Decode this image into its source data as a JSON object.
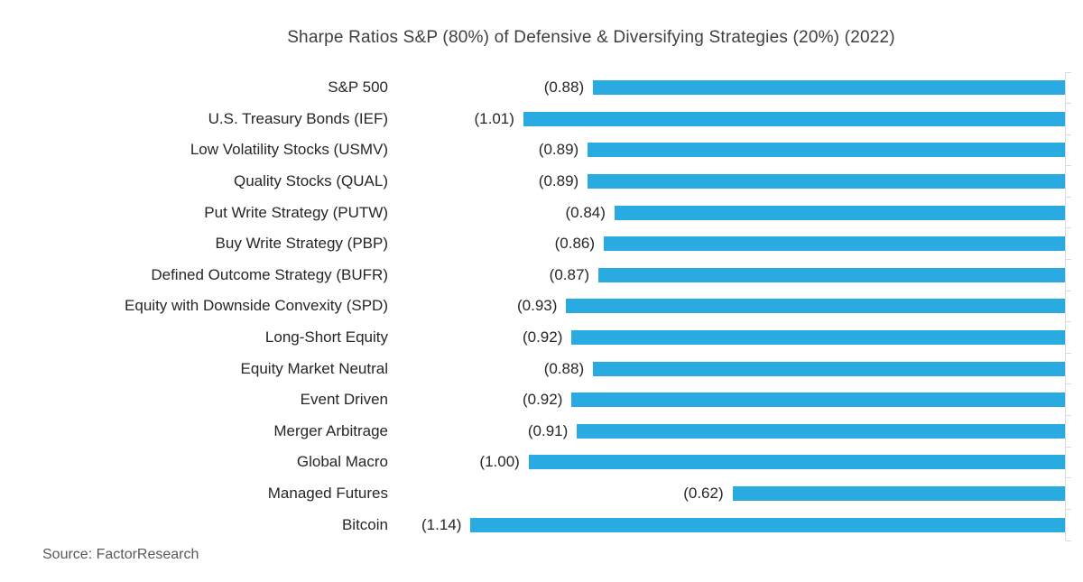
{
  "page": {
    "background": "#FFFFFF"
  },
  "chart_data": {
    "type": "bar",
    "orientation": "horizontal",
    "title": "Sharpe Ratios S&P (80%) of Defensive & Diversifying Strategies (20%) (2022)",
    "categories": [
      "S&P 500",
      "U.S. Treasury Bonds (IEF)",
      "Low Volatility Stocks (USMV)",
      "Quality Stocks (QUAL)",
      "Put Write Strategy (PUTW)",
      "Buy Write Strategy (PBP)",
      "Defined Outcome Strategy (BUFR)",
      "Equity with Downside Convexity (SPD)",
      "Long-Short Equity",
      "Equity Market Neutral",
      "Event Driven",
      "Merger Arbitrage",
      "Global Macro",
      "Managed Futures",
      "Bitcoin"
    ],
    "values": [
      -0.88,
      -1.01,
      -0.89,
      -0.89,
      -0.84,
      -0.86,
      -0.87,
      -0.93,
      -0.92,
      -0.88,
      -0.92,
      -0.91,
      -1.0,
      -0.62,
      -1.14
    ],
    "data_labels": [
      "(0.88)",
      "(1.01)",
      "(0.89)",
      "(0.89)",
      "(0.84)",
      "(0.86)",
      "(0.87)",
      "(0.93)",
      "(0.92)",
      "(0.88)",
      "(0.92)",
      "(0.91)",
      "(1.00)",
      "(0.62)",
      "(1.14)"
    ],
    "xlim": [
      -1.2,
      0
    ],
    "value_axis_side": "right",
    "grid": false,
    "legend": "none",
    "bar_color": "#29ABE2",
    "axis_line_color": "#D9D9D9",
    "label_color": "#262626",
    "title_color": "#3F3F3F"
  },
  "source_note": "Source: FactorResearch"
}
